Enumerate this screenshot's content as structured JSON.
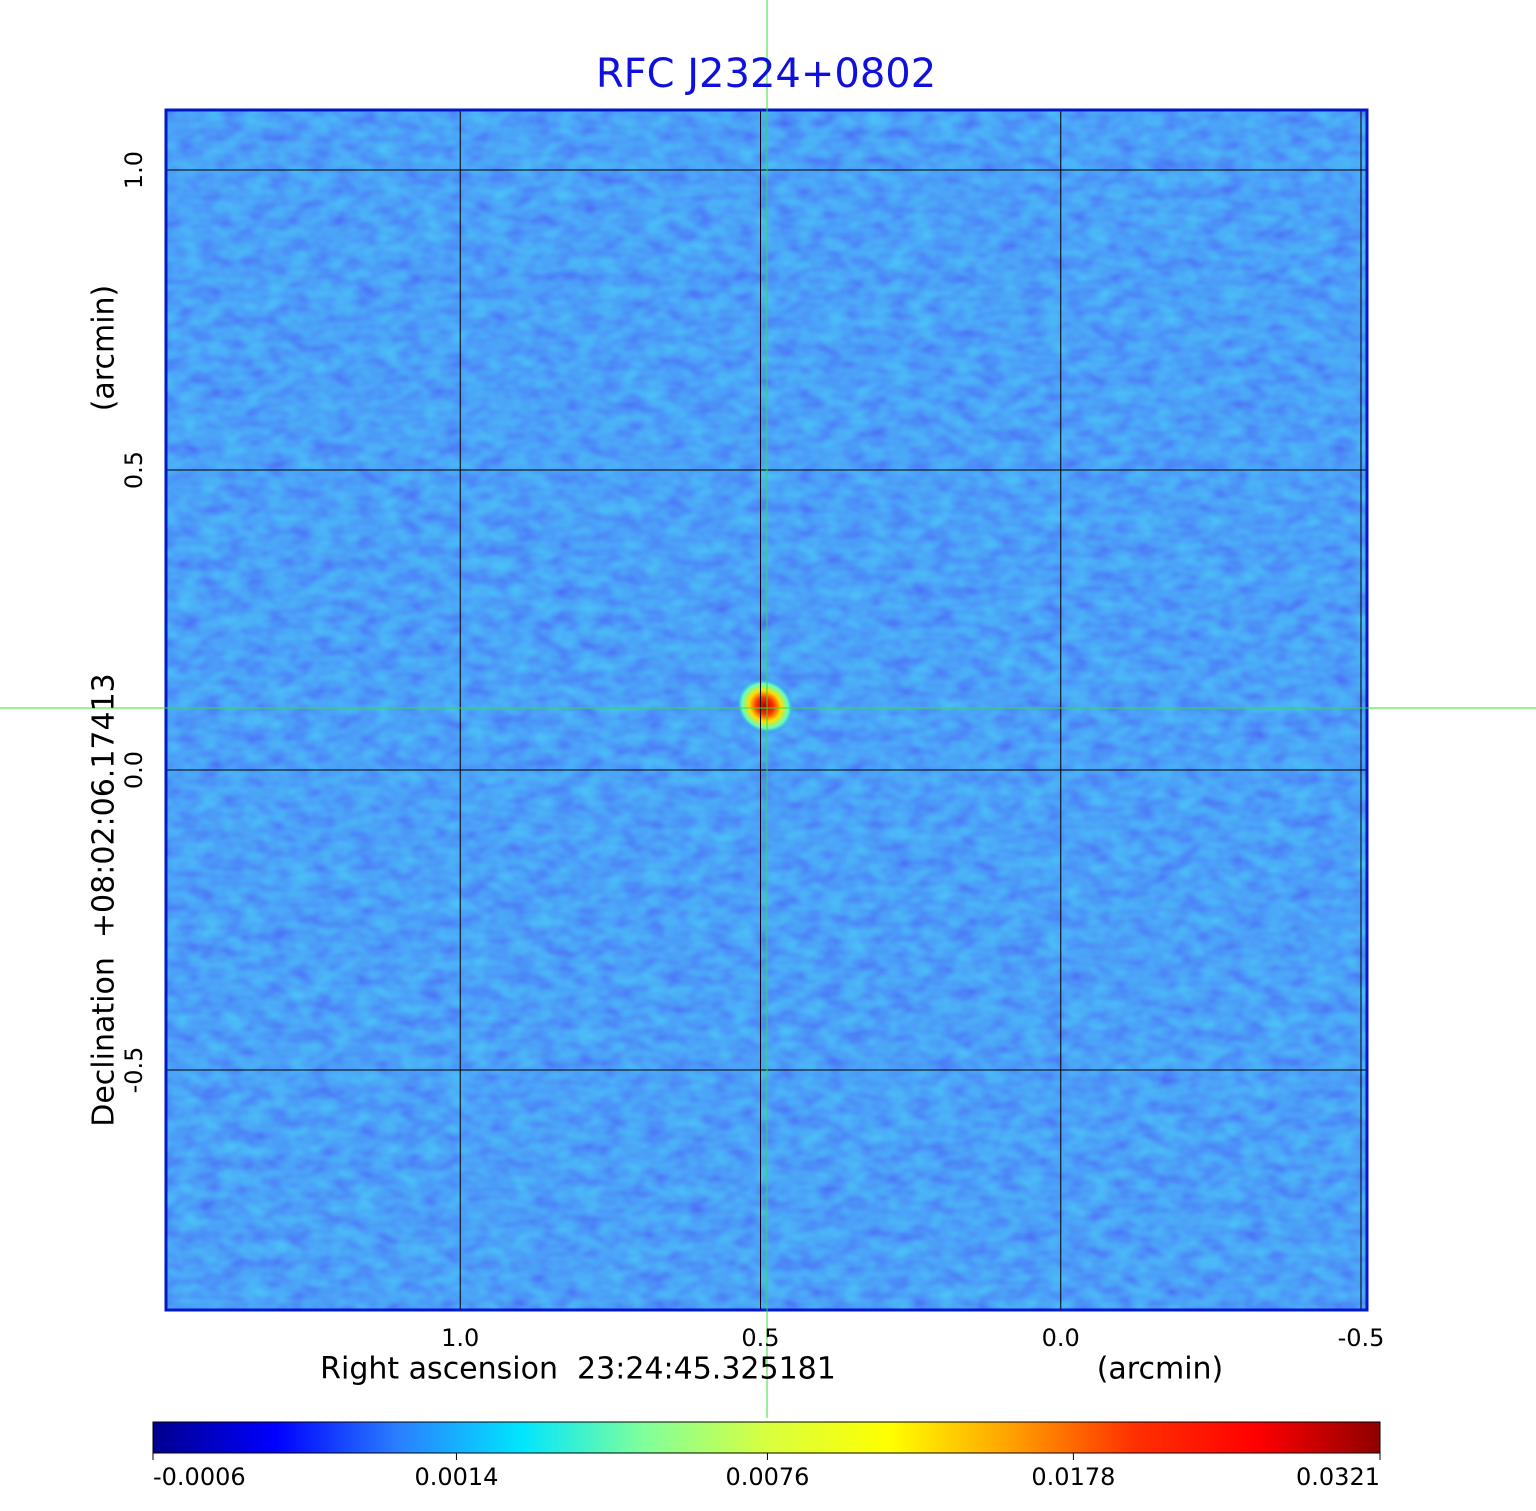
{
  "chart_data": {
    "type": "image",
    "title": "RFC J2324+0802",
    "xlabel": "Right ascension  23:24:45.325181",
    "xunit": "(arcmin)",
    "ylabel": "Declination  +08:02:06.17413",
    "yunit": "(arcmin)",
    "xlim": [
      1.49,
      -0.51
    ],
    "ylim": [
      -0.9,
      1.1
    ],
    "xticks": [
      {
        "value": 1,
        "label": "1.0"
      },
      {
        "value": 0.5,
        "label": "0.5"
      },
      {
        "value": 0,
        "label": "0.0"
      },
      {
        "value": -0.5,
        "label": "-0.5"
      }
    ],
    "yticks": [
      {
        "value": 1,
        "label": "1.0"
      },
      {
        "value": 0.5,
        "label": "0.5"
      },
      {
        "value": 0,
        "label": "0.0"
      },
      {
        "value": -0.5,
        "label": "-0.5"
      }
    ],
    "grid": true,
    "colorbar": {
      "clim": [
        -0.0006,
        0.0321
      ],
      "ticks": [
        -0.0006,
        0.0014,
        0.0076,
        0.0178,
        0.0321
      ],
      "scale": "sqrt",
      "colormap": [
        "#00008f",
        "#0000ff",
        "#2a7fff",
        "#00e5ff",
        "#80ff9a",
        "#d8ff40",
        "#ffff00",
        "#ffa000",
        "#ff3000",
        "#ff0000",
        "#900000"
      ]
    }
  }
}
